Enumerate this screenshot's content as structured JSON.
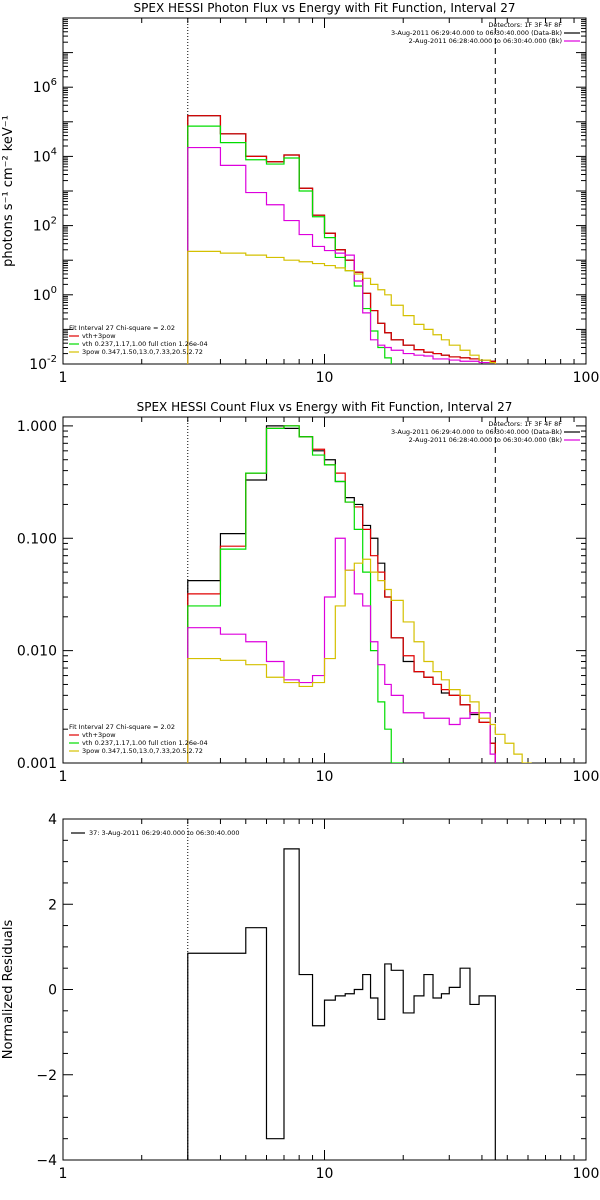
{
  "colors": {
    "black": "#000000",
    "red": "#e00000",
    "green": "#00dd00",
    "magenta": "#dd00dd",
    "yellow": "#d4c000"
  },
  "markers": {
    "fit_low_kev": 3.0,
    "fit_high_kev": 45.0
  },
  "chart_data": [
    {
      "type": "line",
      "title": "SPEX HESSI Photon Flux vs Energy with Fit Function, Interval 27",
      "ylabel": "photons s⁻¹ cm⁻² keV⁻¹",
      "xlim": [
        1,
        100
      ],
      "ylim": [
        0.01,
        100000000
      ],
      "xscale": "log",
      "yscale": "log",
      "xticks": [
        "1",
        "10",
        "100"
      ],
      "yticks": [
        {
          "base": "10",
          "exp": "-2",
          "value": 0.01
        },
        {
          "base": "10",
          "exp": "0",
          "value": 1
        },
        {
          "base": "10",
          "exp": "2",
          "value": 100
        },
        {
          "base": "10",
          "exp": "4",
          "value": 10000
        },
        {
          "base": "10",
          "exp": "6",
          "value": 1000000
        }
      ],
      "ytick_labels": [
        {
          "text": "10⁻²",
          "value": 0.01
        },
        {
          "text": "10⁰",
          "value": 1
        },
        {
          "text": "10²",
          "value": 100
        },
        {
          "text": "10⁴",
          "value": 10000
        },
        {
          "text": "10⁶",
          "value": 1000000
        }
      ],
      "legend_top": [
        "Detectors: 1F 3F 4F 8F",
        "3-Aug-2011 06:29:40.000 to 06:30:40.000 (Data-Bk)",
        "2-Aug-2011 06:28:40.000 to 06:30:40.000 (Bk)"
      ],
      "legend_bottom": [
        {
          "text": "Fit Interval 27    Chi-square = 2.02",
          "color": ""
        },
        {
          "text": "vth+3pow",
          "color": "#e00000"
        },
        {
          "text": "vth 0.237,1.17,1.00  full ction 1.26e-04",
          "color": "#00dd00"
        },
        {
          "text": "3pow 0.347,1.50,13.0,7.33,20.5,2.72",
          "color": "#d4c000"
        }
      ],
      "edges": [
        3,
        4,
        5,
        6,
        7,
        8,
        9,
        10,
        11,
        12,
        13,
        14,
        15,
        16,
        17,
        18,
        20,
        22,
        24,
        26,
        28,
        30,
        33,
        36,
        39,
        43,
        45
      ],
      "series": [
        {
          "color": "#000000",
          "values": [
            150000,
            45000,
            10000,
            7000,
            11000,
            1200,
            200,
            60,
            20,
            10,
            4.5,
            1.1,
            0.35,
            0.15,
            0.08,
            0.05,
            0.035,
            0.026,
            0.022,
            0.02,
            0.018,
            0.016,
            0.015,
            0.014,
            0.013,
            0.012
          ]
        },
        {
          "color": "#e00000",
          "values": [
            150000,
            45000,
            10000,
            7000,
            11000,
            1200,
            200,
            60,
            20,
            10,
            4.5,
            1.1,
            0.35,
            0.15,
            0.08,
            0.05,
            0.035,
            0.026,
            0.022,
            0.02,
            0.018,
            0.016,
            0.015,
            0.014,
            0.013,
            0.012
          ]
        },
        {
          "color": "#00dd00",
          "values": [
            75000,
            25000,
            8000,
            6000,
            9000,
            1000,
            180,
            45,
            12,
            5,
            1.8,
            0.4,
            0.09,
            0.03,
            0.015,
            0.0095
          ]
        },
        {
          "color": "#dd00dd",
          "values": [
            18000,
            5500,
            900,
            400,
            140,
            55,
            25,
            19,
            16,
            14,
            2.5,
            0.3,
            0.05,
            0.035,
            0.03,
            0.025,
            0.02,
            0.018,
            0.017,
            0.014,
            0.014,
            0.013,
            0.012,
            0.012,
            0.011,
            0.011
          ]
        },
        {
          "color": "#d4c000",
          "values": [
            18,
            16,
            14,
            12,
            10,
            9,
            8,
            7,
            6,
            5,
            4,
            3,
            2,
            1.4,
            1.0,
            0.5,
            0.25,
            0.14,
            0.1,
            0.07,
            0.05,
            0.035,
            0.025,
            0.018,
            0.013,
            0.011
          ]
        }
      ]
    },
    {
      "type": "line",
      "title": "SPEX HESSI Count Flux vs Energy with Fit Function, Interval 27",
      "ylabel": "",
      "xlim": [
        1,
        100
      ],
      "ylim": [
        0.001,
        1.2
      ],
      "xscale": "log",
      "yscale": "log",
      "xticks": [
        "1",
        "10",
        "100"
      ],
      "ytick_labels": [
        {
          "text": "1.000",
          "value": 1.0
        },
        {
          "text": "0.100",
          "value": 0.1
        },
        {
          "text": "0.010",
          "value": 0.01
        },
        {
          "text": "0.001",
          "value": 0.001
        }
      ],
      "legend_top": [
        "Detectors: 1F 3F 4F 8F",
        "3-Aug-2011 06:29:40.000 to 06:30:40.000 (Data-Bk)",
        "2-Aug-2011 06:28:40.000 to 06:30:40.000 (Bk)"
      ],
      "legend_bottom": [
        {
          "text": "Fit Interval 27    Chi-square = 2.02",
          "color": ""
        },
        {
          "text": "vth+3pow",
          "color": "#e00000"
        },
        {
          "text": "vth 0.237,1.17,1.00  full ction 1.26e-04",
          "color": "#00dd00"
        },
        {
          "text": "3pow 0.347,1.50,13.0,7.33,20.5,2.72",
          "color": "#d4c000"
        }
      ],
      "edges": [
        3,
        4,
        5,
        6,
        7,
        8,
        9,
        10,
        11,
        12,
        13,
        14,
        15,
        16,
        17,
        18,
        20,
        22,
        24,
        26,
        28,
        30,
        33,
        36,
        39,
        43,
        45,
        49,
        53,
        57,
        62
      ],
      "series": [
        {
          "color": "#000000",
          "values": [
            0.042,
            0.11,
            0.33,
            1.0,
            0.95,
            0.8,
            0.6,
            0.5,
            0.32,
            0.23,
            0.2,
            0.13,
            0.1,
            0.06,
            0.03,
            0.013,
            0.008,
            0.0065,
            0.0058,
            0.005,
            0.0042,
            0.004,
            0.0033,
            0.0027,
            0.0023,
            0.0015
          ]
        },
        {
          "color": "#e00000",
          "values": [
            0.032,
            0.085,
            0.38,
            0.95,
            1.0,
            0.8,
            0.62,
            0.45,
            0.38,
            0.21,
            0.19,
            0.12,
            0.07,
            0.05,
            0.03,
            0.013,
            0.009,
            0.0065,
            0.0058,
            0.005,
            0.0045,
            0.004,
            0.0033,
            0.0028,
            0.0023,
            0.0015
          ]
        },
        {
          "color": "#00dd00",
          "values": [
            0.025,
            0.08,
            0.38,
            0.95,
            1.0,
            0.8,
            0.55,
            0.45,
            0.32,
            0.21,
            0.12,
            0.05,
            0.01,
            0.0035,
            0.002,
            0.001
          ]
        },
        {
          "color": "#dd00dd",
          "values": [
            0.016,
            0.014,
            0.012,
            0.008,
            0.0055,
            0.0052,
            0.006,
            0.03,
            0.1,
            0.052,
            0.032,
            0.025,
            0.012,
            0.0075,
            0.005,
            0.004,
            0.0028,
            0.0028,
            0.0025,
            0.0025,
            0.0025,
            0.0022,
            0.0025,
            0.0028,
            0.0028,
            0.0012
          ]
        },
        {
          "color": "#d4c000",
          "values": [
            0.0085,
            0.0082,
            0.0075,
            0.0058,
            0.0052,
            0.0048,
            0.0052,
            0.0085,
            0.025,
            0.052,
            0.06,
            0.065,
            0.05,
            0.042,
            0.035,
            0.028,
            0.018,
            0.012,
            0.008,
            0.0065,
            0.0055,
            0.0045,
            0.004,
            0.0035,
            0.0025,
            0.0022,
            0.0018,
            0.0015,
            0.0012,
            0.001
          ]
        }
      ]
    },
    {
      "type": "line",
      "title": "",
      "ylabel": "Normalized Residuals",
      "xlim": [
        1,
        100
      ],
      "ylim": [
        -4,
        4
      ],
      "xscale": "log",
      "yscale": "linear",
      "xticks": [
        "1",
        "10",
        "100"
      ],
      "ytick_labels": [
        {
          "text": "4",
          "value": 4
        },
        {
          "text": "2",
          "value": 2
        },
        {
          "text": "0",
          "value": 0
        },
        {
          "text": "−2",
          "value": -2
        },
        {
          "text": "−4",
          "value": -4
        }
      ],
      "legend_top": [
        "37:  3-Aug-2011 06:29:40.000 to 06:30:40.000"
      ],
      "edges": [
        3,
        4,
        5,
        6,
        7,
        8,
        9,
        10,
        11,
        12,
        13,
        14,
        15,
        16,
        17,
        18,
        20,
        22,
        24,
        26,
        28,
        30,
        33,
        36,
        39,
        43,
        45
      ],
      "series": [
        {
          "color": "#000000",
          "values": [
            0.85,
            0.85,
            1.45,
            -3.5,
            3.3,
            0.35,
            -0.85,
            -0.25,
            -0.15,
            -0.1,
            0.0,
            0.35,
            -0.2,
            -0.7,
            0.6,
            0.45,
            -0.55,
            -0.15,
            0.35,
            -0.2,
            -0.1,
            0.05,
            0.5,
            -0.35,
            -0.15,
            -0.15
          ]
        }
      ]
    }
  ]
}
